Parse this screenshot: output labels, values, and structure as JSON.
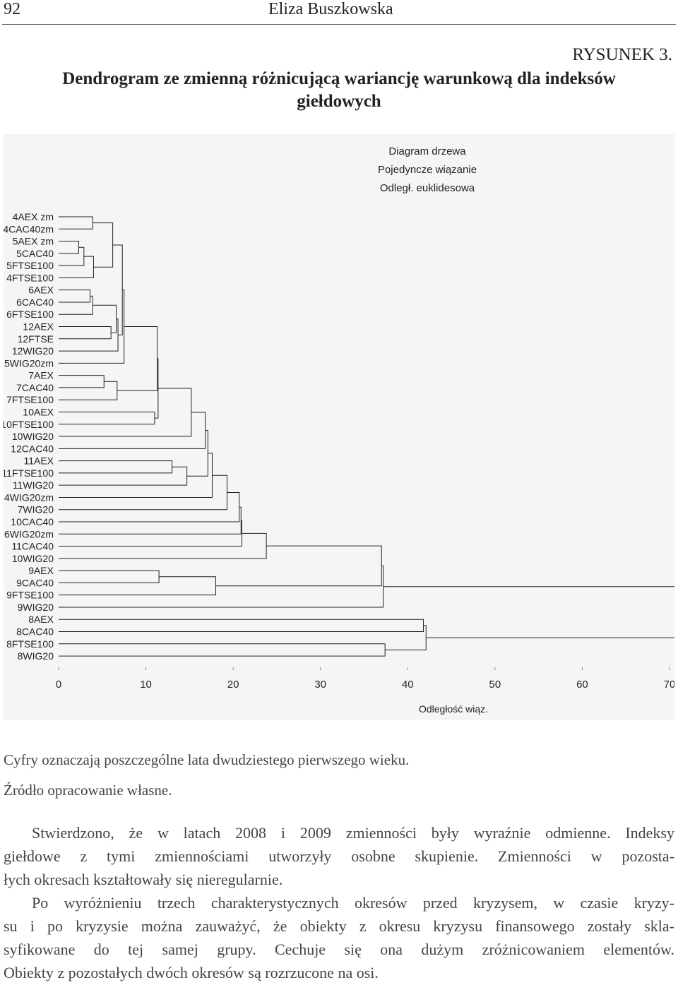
{
  "header": {
    "page_number": "92",
    "author": "Eliza Buszkowska"
  },
  "figure": {
    "label": "RYSUNEK 3.",
    "title_lines": [
      "Dendrogram ze zmienną różnicującą wariancję warunkową dla indeksów",
      "giełdowych"
    ],
    "chart_data": {
      "type": "dendrogram",
      "title_lines": [
        "Diagram drzewa",
        "Pojedyncze wiązanie",
        "Odległ. euklidesowa"
      ],
      "xlabel": "Odległość wiąz.",
      "xlim": [
        0,
        70
      ],
      "xticks": [
        0,
        10,
        20,
        30,
        40,
        50,
        60,
        70
      ],
      "leaves": [
        "4AEX zm",
        "4CAC40zm",
        "5AEX zm",
        "5CAC40",
        "5FTSE100",
        "4FTSE100",
        "6AEX",
        "6CAC40",
        "6FTSE100",
        "12AEX",
        "12FTSE",
        "12WIG20",
        "5WIG20zm",
        "7AEX",
        "7CAC40",
        "7FTSE100",
        "10AEX",
        "10FTSE100",
        "10WIG20",
        "12CAC40",
        "11AEX",
        "11FTSE100",
        "11WIG20",
        "4WIG20zm",
        "7WIG20",
        "10CAC40",
        "6WIG20zm",
        "11CAC40",
        "10WIG20",
        "9AEX",
        "9CAC40",
        "9FTSE100",
        "9WIG20",
        "8AEX",
        "8CAC40",
        "8FTSE100",
        "8WIG20"
      ],
      "merges": [
        [
          0,
          1,
          3.9
        ],
        [
          2,
          3,
          2.3
        ],
        [
          38,
          4,
          2.9
        ],
        [
          39,
          5,
          4.0
        ],
        [
          6,
          7,
          3.6
        ],
        [
          41,
          8,
          3.9
        ],
        [
          9,
          10,
          6.0
        ],
        [
          37,
          40,
          6.2
        ],
        [
          42,
          43,
          6.6
        ],
        [
          45,
          11,
          6.8
        ],
        [
          44,
          46,
          7.3
        ],
        [
          47,
          12,
          7.5
        ],
        [
          13,
          14,
          5.2
        ],
        [
          49,
          15,
          6.7
        ],
        [
          16,
          17,
          11.0
        ],
        [
          48,
          50,
          11.3
        ],
        [
          52,
          51,
          11.4
        ],
        [
          53,
          18,
          15.2
        ],
        [
          20,
          21,
          13.0
        ],
        [
          55,
          22,
          14.7
        ],
        [
          54,
          19,
          16.8
        ],
        [
          57,
          56,
          17.1
        ],
        [
          58,
          23,
          17.6
        ],
        [
          59,
          24,
          19.3
        ],
        [
          60,
          25,
          20.7
        ],
        [
          61,
          26,
          20.9
        ],
        [
          62,
          27,
          21.0
        ],
        [
          29,
          30,
          11.5
        ],
        [
          64,
          31,
          18.0
        ],
        [
          63,
          28,
          23.8
        ],
        [
          66,
          65,
          37.0
        ],
        [
          67,
          32,
          37.2
        ],
        [
          33,
          34,
          41.8
        ],
        [
          35,
          36,
          37.4
        ],
        [
          69,
          70,
          42.1
        ],
        [
          68,
          71,
          71
        ]
      ],
      "color": "#222222"
    },
    "notes": [
      "Cyfry oznaczają poszczególne lata dwudziestego pierwszego wieku.",
      "Źródło opracowanie własne."
    ]
  },
  "body": {
    "paragraphs": [
      [
        "Stwierdzono, że w latach 2008 i 2009 zmienności były wyraźnie odmienne. Indeksy",
        "giełdowe z tymi zmiennościami utworzyły osobne skupienie. Zmienności w pozosta-",
        "łych okresach kształtowały się nieregularnie."
      ],
      [
        "Po wyróżnieniu trzech charakterystycznych okresów przed kryzysem, w czasie kryzy-",
        "su i po kryzysie można zauważyć, że obiekty z okresu kryzysu finansowego zostały skla-",
        "syfikowane do tej samej grupy. Cechuje się ona dużym zróżnicowaniem elementów.",
        "Obiekty z pozostałych dwóch okresów są rozrzucone na osi."
      ]
    ]
  }
}
